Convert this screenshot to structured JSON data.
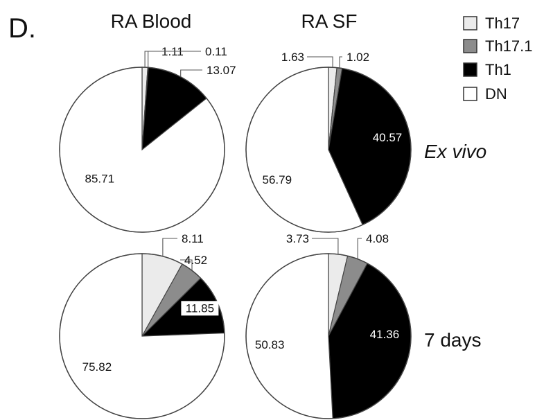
{
  "panel_letter": "D.",
  "columns": [
    "RA Blood",
    "RA SF"
  ],
  "rows": [
    "Ex vivo",
    "7 days"
  ],
  "legend": [
    {
      "label": "Th17",
      "color": "#ebebeb"
    },
    {
      "label": "Th17.1",
      "color": "#8c8c8c"
    },
    {
      "label": "Th1",
      "color": "#000000"
    },
    {
      "label": "DN",
      "color": "#ffffff"
    }
  ],
  "chart_data": [
    {
      "type": "pie",
      "title": "RA Blood",
      "condition": "Ex vivo",
      "categories": [
        "Th17",
        "Th17.1",
        "Th1",
        "DN"
      ],
      "values": [
        1.11,
        0.11,
        13.07,
        85.71
      ],
      "labels": [
        "1.11",
        "0.11",
        "13.07",
        "85.71"
      ]
    },
    {
      "type": "pie",
      "title": "RA SF",
      "condition": "Ex vivo",
      "categories": [
        "Th17",
        "Th17.1",
        "Th1",
        "DN"
      ],
      "values": [
        1.63,
        1.02,
        40.57,
        56.79
      ],
      "labels": [
        "1.63",
        "1.02",
        "40.57",
        "56.79"
      ]
    },
    {
      "type": "pie",
      "title": "RA Blood",
      "condition": "7 days",
      "categories": [
        "Th17",
        "Th17.1",
        "Th1",
        "DN"
      ],
      "values": [
        8.11,
        4.52,
        11.85,
        75.82
      ],
      "labels": [
        "8.11",
        "4.52",
        "11.85",
        "75.82"
      ]
    },
    {
      "type": "pie",
      "title": "RA SF",
      "condition": "7 days",
      "categories": [
        "Th17",
        "Th17.1",
        "Th1",
        "DN"
      ],
      "values": [
        3.73,
        4.08,
        41.36,
        50.83
      ],
      "labels": [
        "3.73",
        "4.08",
        "41.36",
        "50.83"
      ]
    }
  ]
}
